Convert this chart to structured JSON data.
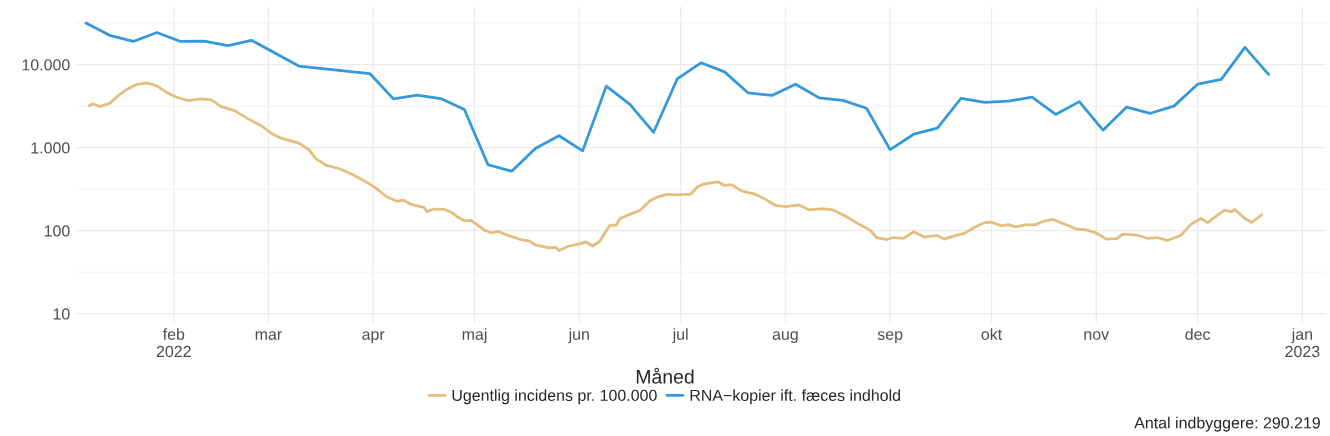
{
  "chart_data": {
    "type": "line",
    "xlabel": "Måned",
    "xlim": [
      "2022-01-03",
      "2023-01-08"
    ],
    "xticks": [
      {
        "value": "2022-02-01",
        "label": "feb\n2022"
      },
      {
        "value": "2022-03-01",
        "label": "mar"
      },
      {
        "value": "2022-04-01",
        "label": "apr"
      },
      {
        "value": "2022-05-01",
        "label": "maj"
      },
      {
        "value": "2022-06-01",
        "label": "jun"
      },
      {
        "value": "2022-07-01",
        "label": "jul"
      },
      {
        "value": "2022-08-01",
        "label": "aug"
      },
      {
        "value": "2022-09-01",
        "label": "sep"
      },
      {
        "value": "2022-10-01",
        "label": "okt"
      },
      {
        "value": "2022-11-01",
        "label": "nov"
      },
      {
        "value": "2022-12-01",
        "label": "dec"
      },
      {
        "value": "2023-01-01",
        "label": "jan\n2023"
      }
    ],
    "log": "y",
    "ylim": [
      7.8,
      50000
    ],
    "yticks": [
      {
        "value": 10,
        "label": "10"
      },
      {
        "value": 31.6,
        "label": null
      },
      {
        "value": 100,
        "label": "100"
      },
      {
        "value": 316,
        "label": null
      },
      {
        "value": 1000,
        "label": "1.000"
      },
      {
        "value": 3160,
        "label": null
      },
      {
        "value": 10000,
        "label": "10.000"
      },
      {
        "value": 31600,
        "label": null
      }
    ],
    "grid": true,
    "legend": "bottom",
    "marker": "none",
    "line_style": "solid",
    "annotations": [
      "Antal indbyggere: 290.219"
    ],
    "series": [
      {
        "name": "Ugentlig incidens pr. 100.000",
        "color": "#e5be7e",
        "x": [
          "2022-01-07",
          "2022-01-08",
          "2022-01-10",
          "2022-01-13",
          "2022-01-15",
          "2022-01-18",
          "2022-01-21",
          "2022-01-24",
          "2022-01-27",
          "2022-01-30",
          "2022-02-02",
          "2022-02-05",
          "2022-02-06",
          "2022-02-09",
          "2022-02-12",
          "2022-02-15",
          "2022-02-19",
          "2022-02-23",
          "2022-02-27",
          "2022-03-02",
          "2022-03-05",
          "2022-03-10",
          "2022-03-13",
          "2022-03-15",
          "2022-03-18",
          "2022-03-22",
          "2022-03-26",
          "2022-03-30",
          "2022-04-02",
          "2022-04-05",
          "2022-04-08",
          "2022-04-10",
          "2022-04-12",
          "2022-04-16",
          "2022-04-17",
          "2022-04-19",
          "2022-04-22",
          "2022-04-24",
          "2022-04-26",
          "2022-04-28",
          "2022-04-30",
          "2022-05-04",
          "2022-05-06",
          "2022-05-08",
          "2022-05-11",
          "2022-05-15",
          "2022-05-17",
          "2022-05-19",
          "2022-05-23",
          "2022-05-25",
          "2022-05-26",
          "2022-05-29",
          "2022-06-01",
          "2022-06-03",
          "2022-06-05",
          "2022-06-07",
          "2022-06-10",
          "2022-06-12",
          "2022-06-13",
          "2022-06-16",
          "2022-06-19",
          "2022-06-22",
          "2022-06-24",
          "2022-06-27",
          "2022-06-30",
          "2022-07-04",
          "2022-07-06",
          "2022-07-08",
          "2022-07-12",
          "2022-07-14",
          "2022-07-16",
          "2022-07-19",
          "2022-07-23",
          "2022-07-26",
          "2022-07-29",
          "2022-08-01",
          "2022-08-05",
          "2022-08-08",
          "2022-08-12",
          "2022-08-15",
          "2022-08-19",
          "2022-08-22",
          "2022-08-26",
          "2022-08-28",
          "2022-08-31",
          "2022-09-02",
          "2022-09-05",
          "2022-09-08",
          "2022-09-11",
          "2022-09-15",
          "2022-09-17",
          "2022-09-20",
          "2022-09-23",
          "2022-09-26",
          "2022-09-29",
          "2022-10-01",
          "2022-10-04",
          "2022-10-06",
          "2022-10-08",
          "2022-10-11",
          "2022-10-14",
          "2022-10-16",
          "2022-10-19",
          "2022-10-22",
          "2022-10-26",
          "2022-10-29",
          "2022-11-01",
          "2022-11-04",
          "2022-11-07",
          "2022-11-09",
          "2022-11-13",
          "2022-11-16",
          "2022-11-19",
          "2022-11-22",
          "2022-11-26",
          "2022-11-29",
          "2022-12-02",
          "2022-12-04",
          "2022-12-07",
          "2022-12-09",
          "2022-12-11",
          "2022-12-12",
          "2022-12-15",
          "2022-12-17",
          "2022-12-20"
        ],
        "values": [
          3190,
          3380,
          3120,
          3410,
          4050,
          5010,
          5740,
          6010,
          5550,
          4590,
          4010,
          3700,
          3700,
          3860,
          3780,
          3120,
          2790,
          2220,
          1820,
          1470,
          1290,
          1130,
          944,
          736,
          615,
          556,
          470,
          384,
          320,
          256,
          226,
          233,
          209,
          191,
          170,
          182,
          180,
          168,
          146,
          131,
          133,
          101,
          94,
          98,
          87.5,
          77.3,
          75.5,
          67.4,
          62.2,
          63,
          57.6,
          65.3,
          69.2,
          73.1,
          65.3,
          74,
          115,
          117,
          140,
          157,
          176,
          231,
          253,
          273,
          270,
          276,
          338,
          366,
          388,
          350,
          358,
          302,
          275,
          240,
          202,
          195,
          204,
          178,
          184,
          178,
          148,
          125,
          102,
          82.6,
          78.2,
          82.6,
          80.9,
          96.9,
          83.8,
          87.5,
          79,
          86.5,
          92.7,
          110,
          125,
          126,
          114,
          118,
          111,
          117,
          118,
          128,
          137,
          123,
          105,
          102,
          93.8,
          79,
          80,
          90.8,
          88.5,
          80.9,
          82.6,
          76.2,
          87.5,
          119,
          140,
          125,
          155,
          176,
          168,
          180,
          140,
          126,
          155
        ]
      },
      {
        "name": "RNA−kopier ift. fæces indhold",
        "color": "#3498db",
        "x": [
          "2022-01-06",
          "2022-01-13",
          "2022-01-20",
          "2022-01-27",
          "2022-02-03",
          "2022-02-10",
          "2022-02-17",
          "2022-02-24",
          "2022-03-10",
          "2022-03-31",
          "2022-04-07",
          "2022-04-14",
          "2022-04-21",
          "2022-04-28",
          "2022-05-05",
          "2022-05-12",
          "2022-05-19",
          "2022-05-26",
          "2022-06-02",
          "2022-06-09",
          "2022-06-16",
          "2022-06-23",
          "2022-06-30",
          "2022-07-07",
          "2022-07-14",
          "2022-07-21",
          "2022-07-28",
          "2022-08-04",
          "2022-08-11",
          "2022-08-18",
          "2022-08-25",
          "2022-09-01",
          "2022-09-08",
          "2022-09-15",
          "2022-09-22",
          "2022-09-29",
          "2022-10-06",
          "2022-10-13",
          "2022-10-20",
          "2022-10-27",
          "2022-11-03",
          "2022-11-10",
          "2022-11-17",
          "2022-11-24",
          "2022-12-01",
          "2022-12-08",
          "2022-12-15",
          "2022-12-22"
        ],
        "values": [
          31600,
          22500,
          19000,
          24300,
          19000,
          19200,
          16900,
          19600,
          9600,
          7800,
          3860,
          4280,
          3900,
          2880,
          622,
          520,
          977,
          1390,
          914,
          5500,
          3310,
          1530,
          6710,
          10500,
          8170,
          4550,
          4250,
          5800,
          3970,
          3700,
          2980,
          946,
          1450,
          1720,
          3930,
          3500,
          3630,
          4060,
          2510,
          3580,
          1620,
          3080,
          2590,
          3160,
          5800,
          6640,
          16100,
          7620
        ]
      }
    ]
  }
}
